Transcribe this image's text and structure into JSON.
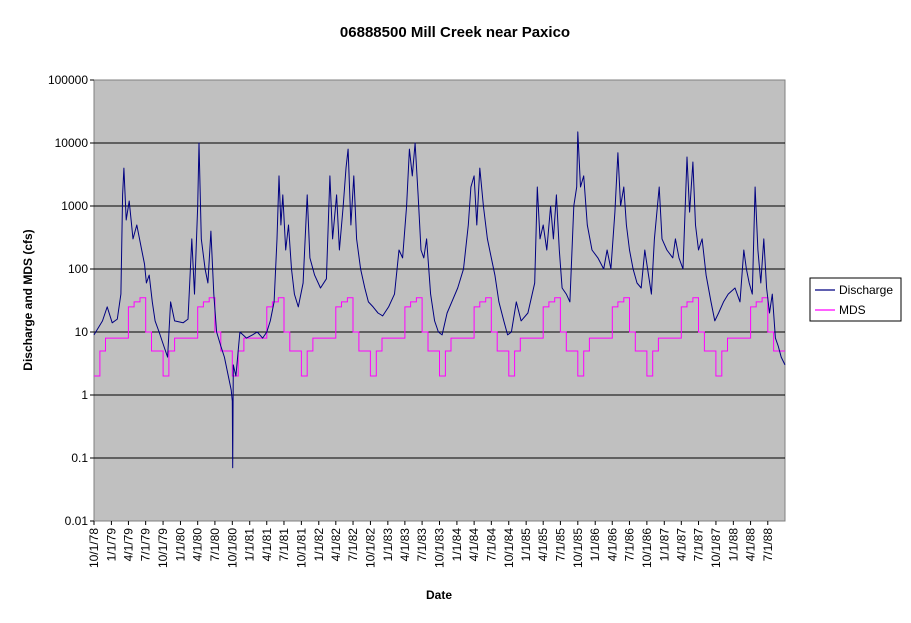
{
  "chart_data": {
    "type": "line",
    "title": "06888500 Mill Creek near Paxico",
    "xlabel": "Date",
    "ylabel": "Discharge and MDS (cfs)",
    "y_scale": "log",
    "ylim": [
      0.01,
      100000
    ],
    "y_ticks": [
      "0.01",
      "0.1",
      "1",
      "10",
      "100",
      "1000",
      "10000",
      "100000"
    ],
    "xlim": [
      "1978-10-01",
      "1988-09-30"
    ],
    "x_ticks": [
      "10/1/78",
      "1/1/79",
      "4/1/79",
      "7/1/79",
      "10/1/79",
      "1/1/80",
      "4/1/80",
      "7/1/80",
      "10/1/80",
      "1/1/81",
      "4/1/81",
      "7/1/81",
      "10/1/81",
      "1/1/82",
      "4/1/82",
      "7/1/82",
      "10/1/82",
      "1/1/83",
      "4/1/83",
      "7/1/83",
      "10/1/83",
      "1/1/84",
      "4/1/84",
      "7/1/84",
      "10/1/84",
      "1/1/85",
      "4/1/85",
      "7/1/85",
      "10/1/85",
      "1/1/86",
      "4/1/86",
      "7/1/86",
      "10/1/86",
      "1/1/87",
      "4/1/87",
      "7/1/87",
      "10/1/87",
      "1/1/88",
      "4/1/88",
      "7/1/88"
    ],
    "grid": true,
    "plot_background": "#c0c0c0",
    "legend_position": "right",
    "series": [
      {
        "name": "Discharge",
        "color": "#000080",
        "points": [
          [
            "1978-10-01",
            9
          ],
          [
            "1978-11-15",
            15
          ],
          [
            "1978-12-10",
            25
          ],
          [
            "1979-01-05",
            14
          ],
          [
            "1979-02-01",
            16
          ],
          [
            "1979-02-20",
            40
          ],
          [
            "1979-03-01",
            1500
          ],
          [
            "1979-03-08",
            4000
          ],
          [
            "1979-03-20",
            600
          ],
          [
            "1979-04-05",
            1200
          ],
          [
            "1979-04-25",
            300
          ],
          [
            "1979-05-15",
            500
          ],
          [
            "1979-06-10",
            200
          ],
          [
            "1979-06-25",
            120
          ],
          [
            "1979-07-05",
            60
          ],
          [
            "1979-07-20",
            80
          ],
          [
            "1979-08-05",
            30
          ],
          [
            "1979-08-20",
            15
          ],
          [
            "1979-09-10",
            10
          ],
          [
            "1979-10-05",
            6
          ],
          [
            "1979-10-25",
            4
          ],
          [
            "1979-11-10",
            30
          ],
          [
            "1979-12-01",
            15
          ],
          [
            "1980-01-15",
            14
          ],
          [
            "1980-02-10",
            16
          ],
          [
            "1980-03-01",
            300
          ],
          [
            "1980-03-15",
            40
          ],
          [
            "1980-04-01",
            1000
          ],
          [
            "1980-04-08",
            10000
          ],
          [
            "1980-04-20",
            300
          ],
          [
            "1980-05-10",
            100
          ],
          [
            "1980-05-25",
            60
          ],
          [
            "1980-06-10",
            400
          ],
          [
            "1980-06-25",
            40
          ],
          [
            "1980-07-10",
            10
          ],
          [
            "1980-08-01",
            6
          ],
          [
            "1980-08-20",
            4
          ],
          [
            "1980-09-10",
            2
          ],
          [
            "1980-09-25",
            1.2
          ],
          [
            "1980-10-01",
            0.8
          ],
          [
            "1980-10-03",
            0.07
          ],
          [
            "1980-10-06",
            3
          ],
          [
            "1980-10-20",
            2
          ],
          [
            "1980-11-10",
            10
          ],
          [
            "1980-12-15",
            8
          ],
          [
            "1981-01-15",
            9
          ],
          [
            "1981-02-10",
            10
          ],
          [
            "1981-03-10",
            8
          ],
          [
            "1981-04-01",
            10
          ],
          [
            "1981-04-20",
            15
          ],
          [
            "1981-05-10",
            30
          ],
          [
            "1981-05-25",
            300
          ],
          [
            "1981-06-05",
            3000
          ],
          [
            "1981-06-15",
            500
          ],
          [
            "1981-06-25",
            1500
          ],
          [
            "1981-07-10",
            200
          ],
          [
            "1981-07-25",
            500
          ],
          [
            "1981-08-10",
            100
          ],
          [
            "1981-08-25",
            40
          ],
          [
            "1981-09-15",
            25
          ],
          [
            "1981-10-10",
            60
          ],
          [
            "1981-11-01",
            1500
          ],
          [
            "1981-11-15",
            150
          ],
          [
            "1981-12-10",
            80
          ],
          [
            "1982-01-10",
            50
          ],
          [
            "1982-02-10",
            70
          ],
          [
            "1982-03-01",
            3000
          ],
          [
            "1982-03-15",
            300
          ],
          [
            "1982-04-05",
            1500
          ],
          [
            "1982-04-20",
            200
          ],
          [
            "1982-05-10",
            1000
          ],
          [
            "1982-05-25",
            4000
          ],
          [
            "1982-06-05",
            8000
          ],
          [
            "1982-06-20",
            500
          ],
          [
            "1982-07-05",
            3000
          ],
          [
            "1982-07-20",
            300
          ],
          [
            "1982-08-10",
            100
          ],
          [
            "1982-09-01",
            50
          ],
          [
            "1982-09-20",
            30
          ],
          [
            "1982-10-15",
            25
          ],
          [
            "1982-11-10",
            20
          ],
          [
            "1982-12-05",
            18
          ],
          [
            "1983-01-05",
            25
          ],
          [
            "1983-02-05",
            40
          ],
          [
            "1983-03-01",
            200
          ],
          [
            "1983-03-20",
            150
          ],
          [
            "1983-04-10",
            1000
          ],
          [
            "1983-04-25",
            8000
          ],
          [
            "1983-05-10",
            3000
          ],
          [
            "1983-05-25",
            10000
          ],
          [
            "1983-06-10",
            1500
          ],
          [
            "1983-06-25",
            200
          ],
          [
            "1983-07-10",
            150
          ],
          [
            "1983-07-25",
            300
          ],
          [
            "1983-08-15",
            40
          ],
          [
            "1983-09-05",
            15
          ],
          [
            "1983-09-25",
            10
          ],
          [
            "1983-10-15",
            9
          ],
          [
            "1983-11-10",
            20
          ],
          [
            "1983-12-05",
            30
          ],
          [
            "1984-01-05",
            50
          ],
          [
            "1984-02-05",
            100
          ],
          [
            "1984-03-01",
            500
          ],
          [
            "1984-03-15",
            2000
          ],
          [
            "1984-04-01",
            3000
          ],
          [
            "1984-04-15",
            500
          ],
          [
            "1984-05-01",
            4000
          ],
          [
            "1984-05-20",
            1000
          ],
          [
            "1984-06-10",
            300
          ],
          [
            "1984-07-01",
            150
          ],
          [
            "1984-07-20",
            80
          ],
          [
            "1984-08-10",
            30
          ],
          [
            "1984-09-05",
            15
          ],
          [
            "1984-09-25",
            9
          ],
          [
            "1984-10-15",
            10
          ],
          [
            "1984-11-10",
            30
          ],
          [
            "1984-12-05",
            15
          ],
          [
            "1985-01-10",
            20
          ],
          [
            "1985-02-15",
            60
          ],
          [
            "1985-03-01",
            2000
          ],
          [
            "1985-03-15",
            300
          ],
          [
            "1985-04-01",
            500
          ],
          [
            "1985-04-20",
            200
          ],
          [
            "1985-05-10",
            1000
          ],
          [
            "1985-05-25",
            300
          ],
          [
            "1985-06-10",
            1500
          ],
          [
            "1985-06-25",
            200
          ],
          [
            "1985-07-10",
            50
          ],
          [
            "1985-08-01",
            40
          ],
          [
            "1985-08-20",
            30
          ],
          [
            "1985-09-10",
            1000
          ],
          [
            "1985-09-25",
            2000
          ],
          [
            "1985-10-01",
            15000
          ],
          [
            "1985-10-15",
            2000
          ],
          [
            "1985-11-01",
            3000
          ],
          [
            "1985-11-20",
            500
          ],
          [
            "1985-12-15",
            200
          ],
          [
            "1986-01-15",
            150
          ],
          [
            "1986-02-15",
            100
          ],
          [
            "1986-03-05",
            200
          ],
          [
            "1986-03-25",
            100
          ],
          [
            "1986-04-15",
            800
          ],
          [
            "1986-05-01",
            7000
          ],
          [
            "1986-05-15",
            1000
          ],
          [
            "1986-06-01",
            2000
          ],
          [
            "1986-06-15",
            500
          ],
          [
            "1986-07-01",
            200
          ],
          [
            "1986-07-20",
            100
          ],
          [
            "1986-08-10",
            60
          ],
          [
            "1986-09-01",
            50
          ],
          [
            "1986-09-20",
            200
          ],
          [
            "1986-10-05",
            100
          ],
          [
            "1986-10-25",
            40
          ],
          [
            "1986-11-10",
            300
          ],
          [
            "1986-12-05",
            2000
          ],
          [
            "1986-12-20",
            300
          ],
          [
            "1987-01-15",
            200
          ],
          [
            "1987-02-15",
            150
          ],
          [
            "1987-03-01",
            300
          ],
          [
            "1987-03-20",
            150
          ],
          [
            "1987-04-10",
            100
          ],
          [
            "1987-05-01",
            6000
          ],
          [
            "1987-05-15",
            800
          ],
          [
            "1987-06-01",
            5000
          ],
          [
            "1987-06-15",
            500
          ],
          [
            "1987-07-01",
            200
          ],
          [
            "1987-07-20",
            300
          ],
          [
            "1987-08-10",
            80
          ],
          [
            "1987-09-05",
            30
          ],
          [
            "1987-09-25",
            15
          ],
          [
            "1987-10-15",
            20
          ],
          [
            "1987-11-10",
            30
          ],
          [
            "1987-12-05",
            40
          ],
          [
            "1988-01-10",
            50
          ],
          [
            "1988-02-05",
            30
          ],
          [
            "1988-02-25",
            200
          ],
          [
            "1988-03-10",
            100
          ],
          [
            "1988-03-25",
            60
          ],
          [
            "1988-04-10",
            40
          ],
          [
            "1988-04-25",
            2000
          ],
          [
            "1988-05-10",
            200
          ],
          [
            "1988-05-25",
            60
          ],
          [
            "1988-06-10",
            300
          ],
          [
            "1988-06-25",
            50
          ],
          [
            "1988-07-10",
            20
          ],
          [
            "1988-07-25",
            40
          ],
          [
            "1988-08-10",
            8
          ],
          [
            "1988-08-25",
            6
          ],
          [
            "1988-09-10",
            4
          ],
          [
            "1988-09-30",
            3
          ]
        ]
      },
      {
        "name": "MDS",
        "color": "#ff00ff",
        "seasonal_steps": [
          {
            "start": "10-01",
            "value": 2
          },
          {
            "start": "11-01",
            "value": 5
          },
          {
            "start": "12-01",
            "value": 8
          },
          {
            "start": "04-01",
            "value": 25
          },
          {
            "start": "05-01",
            "value": 30
          },
          {
            "start": "06-01",
            "value": 35
          },
          {
            "start": "07-01",
            "value": 10
          },
          {
            "start": "08-01",
            "value": 5
          },
          {
            "start": "09-01",
            "value": 5
          }
        ]
      }
    ]
  }
}
